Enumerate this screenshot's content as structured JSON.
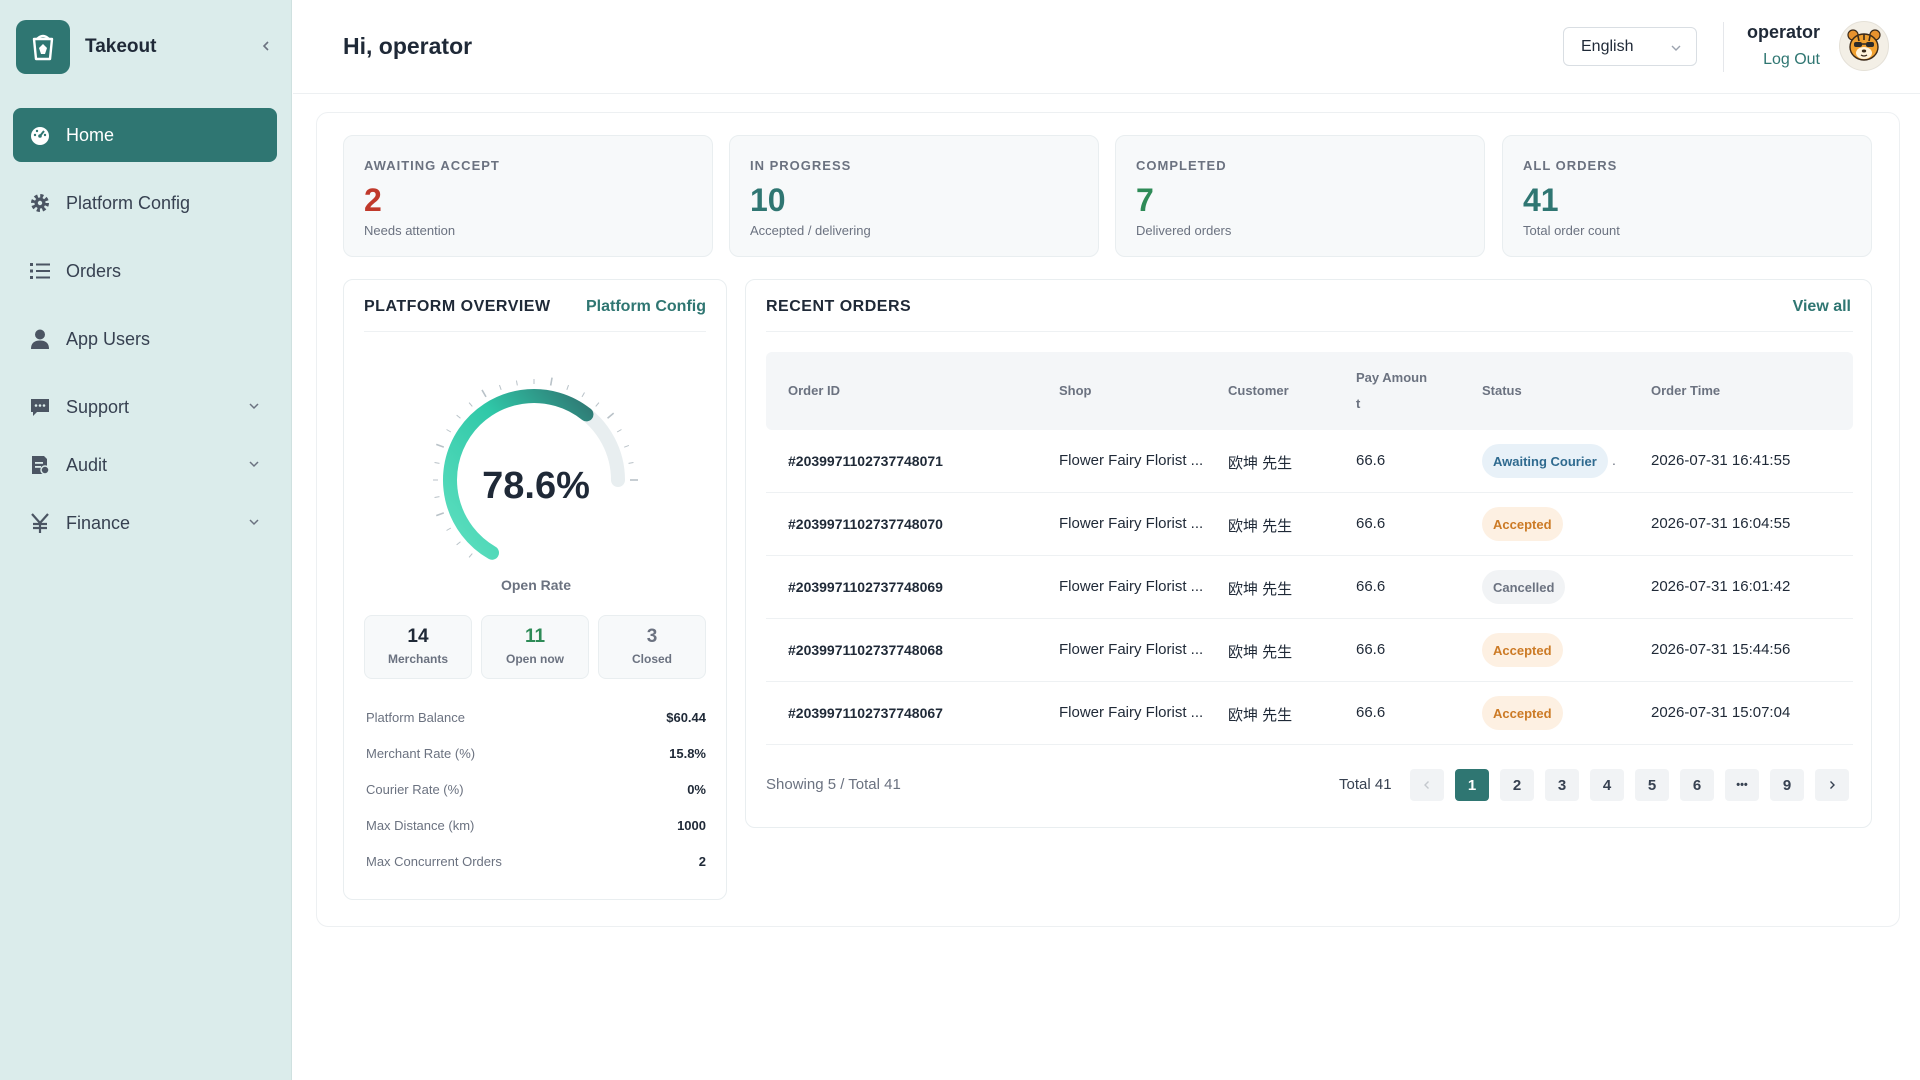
{
  "app": {
    "name": "Takeout"
  },
  "sidebar": {
    "items": [
      {
        "label": "Home",
        "icon": "dashboard-icon",
        "active": true
      },
      {
        "label": "Platform Config",
        "icon": "gear-icon"
      },
      {
        "label": "Orders",
        "icon": "list-icon"
      },
      {
        "label": "App Users",
        "icon": "user-icon"
      },
      {
        "label": "Support",
        "icon": "chat-icon",
        "expandable": true
      },
      {
        "label": "Audit",
        "icon": "audit-icon",
        "expandable": true
      },
      {
        "label": "Finance",
        "icon": "yen-icon",
        "expandable": true
      }
    ]
  },
  "header": {
    "greeting": "Hi, operator",
    "language": "English",
    "user_name": "operator",
    "logout_label": "Log Out"
  },
  "stats": [
    {
      "label": "AWAITING ACCEPT",
      "value": "2",
      "sub": "Needs attention",
      "color": "#c0392b"
    },
    {
      "label": "IN PROGRESS",
      "value": "10",
      "sub": "Accepted / delivering",
      "color": "#2f7672"
    },
    {
      "label": "COMPLETED",
      "value": "7",
      "sub": "Delivered orders",
      "color": "#2e8b57"
    },
    {
      "label": "ALL ORDERS",
      "value": "41",
      "sub": "Total order count",
      "color": "#2f7672"
    }
  ],
  "overview": {
    "title": "PLATFORM OVERVIEW",
    "link": "Platform Config",
    "gauge_value": "78.6%",
    "gauge_fraction": 0.786,
    "gauge_label": "Open Rate",
    "mini": [
      {
        "value": "14",
        "label": "Merchants",
        "color": "#1f2937"
      },
      {
        "value": "11",
        "label": "Open now",
        "color": "#2e8b57"
      },
      {
        "value": "3",
        "label": "Closed",
        "color": "#6b7280"
      }
    ],
    "kv": [
      {
        "k": "Platform Balance",
        "v": "$60.44"
      },
      {
        "k": "Merchant Rate (%)",
        "v": "15.8%"
      },
      {
        "k": "Courier Rate (%)",
        "v": "0%"
      },
      {
        "k": "Max Distance (km)",
        "v": "1000"
      },
      {
        "k": "Max Concurrent Orders",
        "v": "2"
      }
    ]
  },
  "recent": {
    "title": "RECENT ORDERS",
    "link": "View all",
    "columns": {
      "id": "Order ID",
      "shop": "Shop",
      "customer": "Customer",
      "pay_line1": "Pay Amoun",
      "pay_line2": "t",
      "status": "Status",
      "time": "Order Time"
    },
    "rows": [
      {
        "id": "#2039971102737748071",
        "shop": "Flower Fairy Florist ...",
        "customer": "欧坤 先生",
        "pay": "66.6",
        "status": "Awaiting Courier",
        "tone": "blue",
        "time": "2026-07-31 16:41:55"
      },
      {
        "id": "#2039971102737748070",
        "shop": "Flower Fairy Florist ...",
        "customer": "欧坤 先生",
        "pay": "66.6",
        "status": "Accepted",
        "tone": "orange",
        "time": "2026-07-31 16:04:55"
      },
      {
        "id": "#2039971102737748069",
        "shop": "Flower Fairy Florist ...",
        "customer": "欧坤 先生",
        "pay": "66.6",
        "status": "Cancelled",
        "tone": "gray",
        "time": "2026-07-31 16:01:42"
      },
      {
        "id": "#2039971102737748068",
        "shop": "Flower Fairy Florist ...",
        "customer": "欧坤 先生",
        "pay": "66.6",
        "status": "Accepted",
        "tone": "orange",
        "time": "2026-07-31 15:44:56"
      },
      {
        "id": "#2039971102737748067",
        "shop": "Flower Fairy Florist ...",
        "customer": "欧坤 先生",
        "pay": "66.6",
        "status": "Accepted",
        "tone": "orange",
        "time": "2026-07-31 15:07:04"
      }
    ],
    "showing": "Showing 5 / Total 41",
    "total": "Total 41",
    "pages": [
      "1",
      "2",
      "3",
      "4",
      "5",
      "6",
      "•••",
      "9"
    ],
    "current_page": "1"
  }
}
